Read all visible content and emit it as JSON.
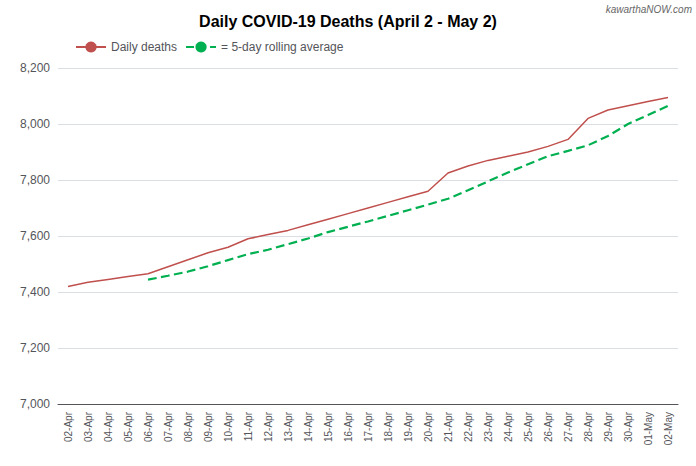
{
  "chart_data": {
    "type": "line",
    "title": "Daily COVID-19 Deaths (April 2 - May 2)",
    "annotations": [
      "kawarthaNOW.com"
    ],
    "categories": [
      "02-Apr",
      "03-Apr",
      "04-Apr",
      "05-Apr",
      "06-Apr",
      "07-Apr",
      "08-Apr",
      "09-Apr",
      "10-Apr",
      "11-Apr",
      "12-Apr",
      "13-Apr",
      "14-Apr",
      "15-Apr",
      "16-Apr",
      "17-Apr",
      "18-Apr",
      "19-Apr",
      "20-Apr",
      "21-Apr",
      "22-Apr",
      "23-Apr",
      "24-Apr",
      "25-Apr",
      "26-Apr",
      "27-Apr",
      "28-Apr",
      "29-Apr",
      "30-Apr",
      "01-May",
      "02-May"
    ],
    "series": [
      {
        "name": "Daily deaths",
        "color": "#C0504D",
        "line_style": "solid",
        "values": [
          7420,
          7435,
          7445,
          7455,
          7465,
          7490,
          7515,
          7540,
          7560,
          7590,
          7605,
          7620,
          7640,
          7660,
          7680,
          7700,
          7720,
          7740,
          7760,
          7825,
          7850,
          7870,
          7885,
          7900,
          7920,
          7945,
          8020,
          8050,
          8065,
          8080,
          8095
        ]
      },
      {
        "name": "= 5-day rolling average",
        "color": "#00B050",
        "line_style": "dashed",
        "values": [
          null,
          null,
          null,
          null,
          7444,
          7458,
          7473,
          7492,
          7514,
          7535,
          7551,
          7571,
          7591,
          7614,
          7633,
          7652,
          7672,
          7692,
          7712,
          7733,
          7763,
          7795,
          7827,
          7856,
          7885,
          7904,
          7924,
          7957,
          8000,
          8032,
          8065
        ]
      }
    ],
    "ylim": [
      7000,
      8200
    ],
    "yticks": [
      {
        "value": 7000,
        "label": "7,000"
      },
      {
        "value": 7200,
        "label": "7,200"
      },
      {
        "value": 7400,
        "label": "7,400"
      },
      {
        "value": 7600,
        "label": "7,600"
      },
      {
        "value": 7800,
        "label": "7,800"
      },
      {
        "value": 8000,
        "label": "8,000"
      },
      {
        "value": 8200,
        "label": "8,200"
      }
    ],
    "grid": true,
    "legend": "upper left"
  }
}
